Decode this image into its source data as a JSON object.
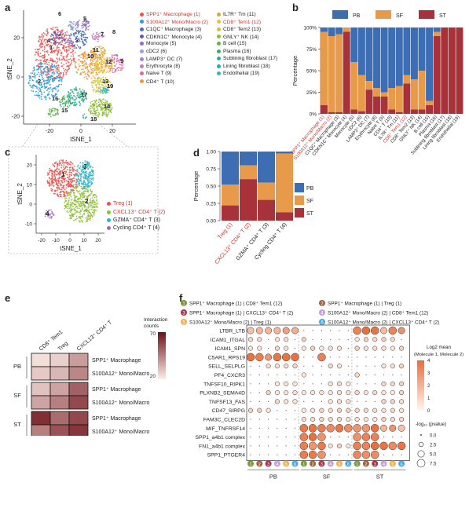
{
  "panels": {
    "a": {
      "letter": "a",
      "xlabel": "tSNE_1",
      "ylabel": "tSNE_2",
      "xticks": [
        "-20",
        "0",
        "20"
      ],
      "yticks": [
        "20",
        "0",
        "-20"
      ],
      "cluster_labels": [
        "1",
        "2",
        "3",
        "4",
        "5",
        "6",
        "7",
        "8",
        "9",
        "10",
        "11",
        "12",
        "13",
        "14",
        "15",
        "16",
        "17",
        "18",
        "19"
      ],
      "legend": [
        {
          "label": "SPP1⁺ Macrophage (1)",
          "color": "#e8544f",
          "highlight": true
        },
        {
          "label": "S100A12⁺ Mono/Macro (2)",
          "color": "#2f9bd6",
          "highlight": true
        },
        {
          "label": "C1QC⁺ Macrophage (3)",
          "color": "#4a6fb5",
          "highlight": false
        },
        {
          "label": "CDKN1C⁺ Monocyte (4)",
          "color": "#6a5aa8",
          "highlight": false
        },
        {
          "label": "Monocyte (5)",
          "color": "#8e6bbf",
          "highlight": false
        },
        {
          "label": "cDC2 (6)",
          "color": "#9aa0d0",
          "highlight": false
        },
        {
          "label": "LAMP3⁺ DC (7)",
          "color": "#a77fc5",
          "highlight": false
        },
        {
          "label": "Erythrocyte (8)",
          "color": "#c77bb4",
          "highlight": false
        },
        {
          "label": "Naive T (9)",
          "color": "#d96aa0",
          "highlight": false
        },
        {
          "label": "CD4⁺ T (10)",
          "color": "#e89a3c",
          "highlight": false
        },
        {
          "label": "IL7R⁺ Tm (11)",
          "color": "#e0a23a",
          "highlight": false
        },
        {
          "label": "CD8⁺ Tem1 (12)",
          "color": "#e9c03a",
          "highlight": true
        },
        {
          "label": "CD8⁺ Tem2 (13)",
          "color": "#c8c23a",
          "highlight": false
        },
        {
          "label": "GNLY⁺ NK (14)",
          "color": "#8fbf3a",
          "highlight": false
        },
        {
          "label": "B cell (15)",
          "color": "#5fb34a",
          "highlight": false
        },
        {
          "label": "Plasma (16)",
          "color": "#3fae5a",
          "highlight": false
        },
        {
          "label": "Sublining fibroblast (17)",
          "color": "#2fae8a",
          "highlight": false
        },
        {
          "label": "Lining fibroblast (18)",
          "color": "#2fa9a8",
          "highlight": false
        },
        {
          "label": "Endothelial (19)",
          "color": "#34b6c0",
          "highlight": false
        }
      ]
    },
    "b": {
      "letter": "b",
      "ylabel": "Percentage",
      "yticks": [
        "100%",
        "75%",
        "50%",
        "25%",
        "0%"
      ],
      "legend": [
        {
          "label": "PB",
          "color": "#3d6eb4"
        },
        {
          "label": "SF",
          "color": "#e79a4a"
        },
        {
          "label": "ST",
          "color": "#a8323a"
        }
      ]
    },
    "c": {
      "letter": "c",
      "xlabel": "tSNE_1",
      "ylabel": "tSNE_2",
      "xticks": [
        "-20",
        "-10",
        "0",
        "10",
        "20"
      ],
      "yticks": [
        "20",
        "10",
        "0",
        "-10"
      ],
      "cluster_labels": [
        "1",
        "2",
        "3",
        "4"
      ],
      "legend": [
        {
          "label": "Treg (1)",
          "color": "#e8544f",
          "highlight": true
        },
        {
          "label": "CXCL13⁺ CD4⁺ T (2)",
          "color": "#8fbf3a",
          "highlight": true
        },
        {
          "label": "GZMA⁺ CD4⁺ T (3)",
          "color": "#2fb4c4",
          "highlight": false
        },
        {
          "label": "Cycling CD4⁺ T (4)",
          "color": "#9a6bc0",
          "highlight": false
        }
      ]
    },
    "d": {
      "letter": "d",
      "ylabel": "Percentage",
      "yticks": [
        "1.00",
        "0.75",
        "0.50",
        "0.25",
        "0.00"
      ],
      "legend": [
        {
          "label": "PB",
          "color": "#3d6eb4"
        },
        {
          "label": "SF",
          "color": "#e79a4a"
        },
        {
          "label": "ST",
          "color": "#a8323a"
        }
      ]
    },
    "e": {
      "letter": "e",
      "columns": [
        "CD8⁺ Tem1",
        "Treg",
        "CXCL13⁺ CD4⁺ T"
      ],
      "groups": [
        "PB",
        "SF",
        "ST"
      ],
      "rows": [
        "SPP1⁺ Macrophage",
        "S100A12⁺ Mono/Macro"
      ],
      "values": [
        [
          14,
          18,
          32
        ],
        [
          20,
          25,
          38
        ],
        [
          22,
          30,
          48
        ],
        [
          30,
          40,
          55
        ],
        [
          62,
          45,
          55
        ],
        [
          40,
          52,
          60
        ]
      ],
      "colorbar_title_1": "Interaction",
      "colorbar_title_2": "counts",
      "colorbar_max": "70",
      "colorbar_min": "20"
    },
    "f": {
      "letter": "f",
      "pair_legend": [
        {
          "num": "1",
          "color": "#7a9a3a",
          "label": "SPP1⁺ Macrophage (1) | CD8⁺ Tem1 (12)"
        },
        {
          "num": "2",
          "color": "#a0643c",
          "label": "SPP1⁺ Macrophage (1) | Treg (1)"
        },
        {
          "num": "3",
          "color": "#a8324a",
          "label": "SPP1⁺ Macrophage (1) | CXCL13⁺ CD4⁺ T (2)"
        },
        {
          "num": "4",
          "color": "#c8a0d8",
          "label": "S100A12⁺ Mono/Macro (2) | CD8⁺ Tem1 (12)"
        },
        {
          "num": "5",
          "color": "#f0b050",
          "label": "S100A12⁺ Mono/Macro (2) | Treg (1)"
        },
        {
          "num": "6",
          "color": "#4aa8e0",
          "label": "S100A12⁺ Mono/Macro (2) | CXCL13⁺ CD4⁺ T (2)"
        }
      ],
      "rows": [
        "LTBR_LTB",
        "ICAM1_ITGAL",
        "ICAM1_SPN",
        "C5AR1_RPS19",
        "SELL_SELPLG",
        "PF4_CXCR3",
        "TNFSF10_RIPK1",
        "PLXNB2_SEMA4D",
        "TNFSF13_FAS",
        "CD47_SIRPG",
        "FAM3C_CLEC2D",
        "MIF_TNFRSF14",
        "SPP1_a4b1 complex",
        "FN1_a4b1 complex",
        "SPP1_PTGER4"
      ],
      "groups": [
        "PB",
        "SF",
        "ST"
      ],
      "colorbar_title_1": "Log2 mean",
      "colorbar_title_2": "(Molecule 1, Molecule 2)",
      "colorbar_ticks": [
        "4",
        "3",
        "2",
        "1",
        "0"
      ],
      "size_title": "-log₁₀ (pvalue)",
      "size_ticks": [
        "0.0",
        "2.5",
        "5.0",
        "7.5"
      ]
    }
  }
}
